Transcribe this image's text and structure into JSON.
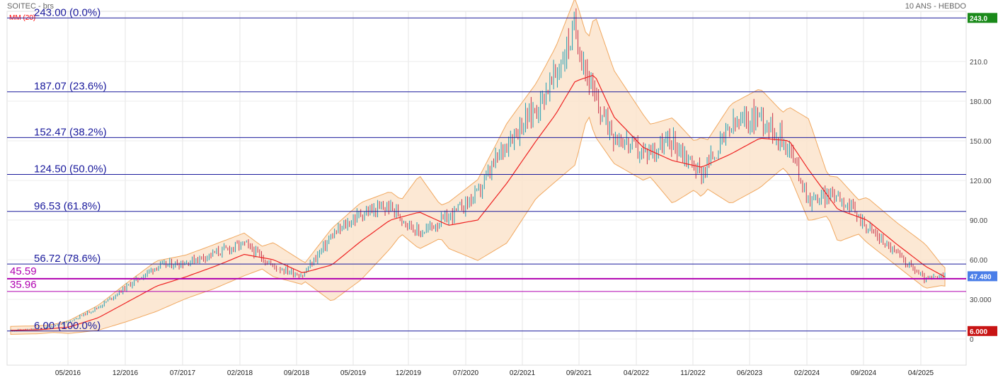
{
  "header": {
    "title": "SOITEC - brs",
    "period": "10 ANS - HEBDO",
    "indicator": "MM (20)"
  },
  "colors": {
    "up_bar": "#1f9db3",
    "down_bar": "#c8324a",
    "ma_line": "#ee2222",
    "band_fill": "#fce4cc",
    "band_stroke": "#f0a860",
    "fib_line": "#1a1a9c",
    "support_line": "#b000b0",
    "tag_top": "#1a8a1a",
    "tag_current": "#4a7ee8",
    "tag_bottom": "#c81414"
  },
  "chart_data": {
    "type": "line",
    "title": "SOITEC - brs",
    "xlabel": "",
    "ylabel": "",
    "ylim": [
      -7,
      250
    ],
    "y_ticks": [
      "0",
      "30.000",
      "60.00",
      "90.00",
      "120.00",
      "150.00",
      "180.00",
      "210.0"
    ],
    "x_ticks": [
      "05/2016",
      "12/2016",
      "07/2017",
      "02/2018",
      "09/2018",
      "05/2019",
      "12/2019",
      "07/2020",
      "02/2021",
      "09/2021",
      "04/2022",
      "11/2022",
      "06/2023",
      "02/2024",
      "09/2024",
      "04/2025"
    ],
    "fibonacci_levels": [
      {
        "label": "243.00 (0.0%)",
        "value": 243.0
      },
      {
        "label": "187.07 (23.6%)",
        "value": 187.07
      },
      {
        "label": "152.47 (38.2%)",
        "value": 152.47
      },
      {
        "label": "124.50 (50.0%)",
        "value": 124.5
      },
      {
        "label": "96.53 (61.8%)",
        "value": 96.53
      },
      {
        "label": "56.72 (78.6%)",
        "value": 56.72
      },
      {
        "label": "6.00 (100.0%)",
        "value": 6.0
      }
    ],
    "support_levels": [
      {
        "label": "45.59",
        "value": 45.59
      },
      {
        "label": "35.96",
        "value": 35.96
      }
    ],
    "price_tags": {
      "top": "243.0",
      "current": "47.480",
      "bottom": "6.000"
    },
    "series": [
      {
        "name": "MM (20)",
        "x": [
          2016.0,
          2016.3,
          2016.6,
          2016.9,
          2017.2,
          2017.5,
          2017.8,
          2018.1,
          2018.4,
          2018.7,
          2019.0,
          2019.3,
          2019.6,
          2019.9,
          2020.2,
          2020.5,
          2020.8,
          2021.1,
          2021.4,
          2021.6,
          2021.8,
          2022.0,
          2022.2,
          2022.5,
          2022.8,
          2023.1,
          2023.4,
          2023.7,
          2024.0,
          2024.2,
          2024.5,
          2024.8,
          2025.1,
          2025.4,
          2025.6
        ],
        "values": [
          6.5,
          7,
          9,
          16,
          28,
          40,
          47,
          55,
          64,
          60,
          50,
          56,
          74,
          90,
          96,
          86,
          90,
          118,
          150,
          170,
          195,
          200,
          168,
          145,
          135,
          130,
          140,
          152,
          150,
          128,
          98,
          90,
          72,
          55,
          47
        ]
      },
      {
        "name": "Price (weekly close)",
        "x": [
          2016.0,
          2016.3,
          2016.6,
          2016.9,
          2017.2,
          2017.5,
          2017.8,
          2018.1,
          2018.4,
          2018.7,
          2019.0,
          2019.3,
          2019.6,
          2019.9,
          2020.2,
          2020.5,
          2020.8,
          2021.1,
          2021.4,
          2021.6,
          2021.8,
          2022.0,
          2022.2,
          2022.5,
          2022.8,
          2023.1,
          2023.4,
          2023.7,
          2024.0,
          2024.2,
          2024.5,
          2024.8,
          2025.1,
          2025.4,
          2025.6
        ],
        "values": [
          6.5,
          7.5,
          13,
          24,
          40,
          55,
          58,
          65,
          72,
          55,
          48,
          78,
          95,
          100,
          80,
          92,
          110,
          150,
          175,
          200,
          235,
          180,
          155,
          140,
          150,
          125,
          160,
          170,
          145,
          105,
          110,
          85,
          65,
          45,
          47.48
        ]
      }
    ]
  }
}
